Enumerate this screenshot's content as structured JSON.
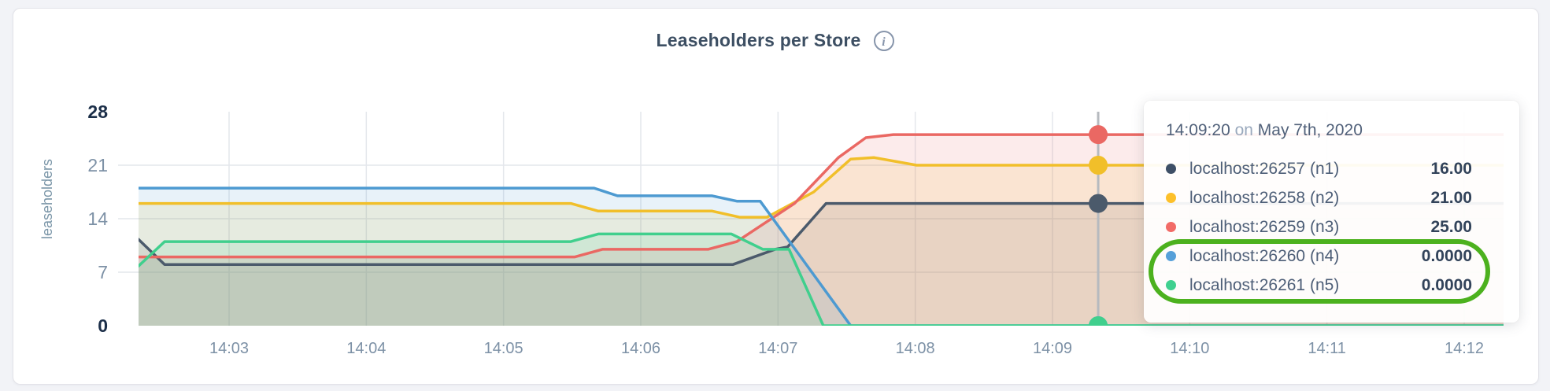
{
  "header": {
    "title": "Leaseholders per Store",
    "info_icon": "i"
  },
  "chart_data": {
    "type": "area",
    "title": "Leaseholders per Store",
    "ylabel": "leaseholders",
    "xlabel": "",
    "ylim": [
      0,
      28
    ],
    "y_ticks": [
      {
        "value": 0,
        "label": "0",
        "bold": true
      },
      {
        "value": 7,
        "label": "7",
        "bold": false
      },
      {
        "value": 14,
        "label": "14",
        "bold": false
      },
      {
        "value": 21,
        "label": "21",
        "bold": false
      },
      {
        "value": 28,
        "label": "28",
        "bold": true
      }
    ],
    "x_ticks": [
      {
        "t": 3,
        "label": "14:03"
      },
      {
        "t": 4,
        "label": "14:04"
      },
      {
        "t": 5,
        "label": "14:05"
      },
      {
        "t": 6,
        "label": "14:06"
      },
      {
        "t": 7,
        "label": "14:07"
      },
      {
        "t": 8,
        "label": "14:08"
      },
      {
        "t": 9,
        "label": "14:09"
      },
      {
        "t": 10,
        "label": "14:10"
      },
      {
        "t": 11,
        "label": "14:11"
      },
      {
        "t": 12,
        "label": "14:12"
      }
    ],
    "x_domain_minutes": [
      2.34,
      12.29
    ],
    "grid": true,
    "series": [
      {
        "name": "localhost:26257 (n1)",
        "color": "#4b5a6b",
        "points": [
          [
            2.34,
            11.3
          ],
          [
            2.53,
            8
          ],
          [
            6.67,
            8
          ],
          [
            6.98,
            10
          ],
          [
            7.07,
            10.3
          ],
          [
            7.35,
            16
          ],
          [
            12.29,
            16
          ]
        ]
      },
      {
        "name": "localhost:26258 (n2)",
        "color": "#f1bf2a",
        "points": [
          [
            2.34,
            16
          ],
          [
            5.49,
            16
          ],
          [
            5.69,
            15
          ],
          [
            6.52,
            15
          ],
          [
            6.72,
            14.2
          ],
          [
            6.92,
            14.2
          ],
          [
            7.26,
            17.5
          ],
          [
            7.53,
            21.8
          ],
          [
            7.7,
            22
          ],
          [
            8.01,
            21
          ],
          [
            12.29,
            21
          ]
        ]
      },
      {
        "name": "localhost:26259 (n3)",
        "color": "#ea6863",
        "points": [
          [
            2.34,
            9
          ],
          [
            5.52,
            9
          ],
          [
            5.72,
            10
          ],
          [
            6.49,
            10
          ],
          [
            6.7,
            11
          ],
          [
            7.12,
            16
          ],
          [
            7.44,
            22
          ],
          [
            7.64,
            24.6
          ],
          [
            7.84,
            25
          ],
          [
            12.29,
            25
          ]
        ]
      },
      {
        "name": "localhost:26260 (n4)",
        "color": "#4d9ad1",
        "points": [
          [
            2.34,
            18
          ],
          [
            5.66,
            18
          ],
          [
            5.83,
            17
          ],
          [
            6.52,
            17
          ],
          [
            6.7,
            16.3
          ],
          [
            6.87,
            16.3
          ],
          [
            7.53,
            0
          ],
          [
            12.29,
            0
          ]
        ]
      },
      {
        "name": "localhost:26261 (n5)",
        "color": "#40cf8d",
        "points": [
          [
            2.34,
            7.8
          ],
          [
            2.53,
            11
          ],
          [
            5.49,
            11
          ],
          [
            5.69,
            12
          ],
          [
            6.66,
            12
          ],
          [
            6.89,
            10
          ],
          [
            7.08,
            10
          ],
          [
            7.33,
            0
          ],
          [
            12.29,
            0
          ]
        ]
      }
    ],
    "hover": {
      "t": 9.333,
      "line_color": "#b6babf",
      "dot_values": [
        16,
        21,
        25,
        0,
        0
      ]
    },
    "colors": {
      "grid": "#e4e7ec",
      "tick_label": "#7d91a6",
      "tick_label_bold": "#1c2f49",
      "area_opacity": 0.13
    }
  },
  "tooltip": {
    "time": "14:09:20",
    "on": "on",
    "date": "May 7th, 2020",
    "rows": [
      {
        "name": "localhost:26257 (n1)",
        "value": "16.00",
        "color": "#3e4f66"
      },
      {
        "name": "localhost:26258 (n2)",
        "value": "21.00",
        "color": "#fdc02a"
      },
      {
        "name": "localhost:26259 (n3)",
        "value": "25.00",
        "color": "#f26b67"
      },
      {
        "name": "localhost:26260 (n4)",
        "value": "0.0000",
        "color": "#56a0d9"
      },
      {
        "name": "localhost:26261 (n5)",
        "value": "0.0000",
        "color": "#3fd08f"
      }
    ],
    "highlight_color": "#4cb11e"
  }
}
